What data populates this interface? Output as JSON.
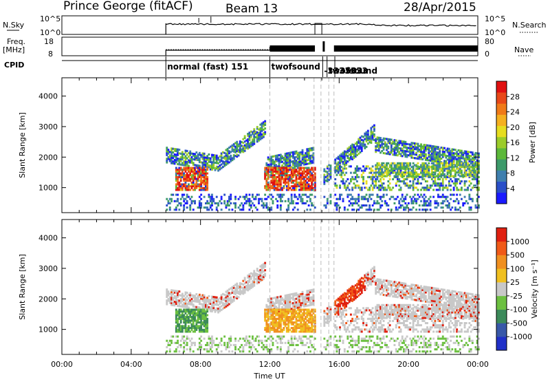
{
  "header": {
    "station": "Prince George (fitACF)",
    "beam": "Beam 13",
    "date": "28/Apr/2015"
  },
  "strip_labels": {
    "nsky": "N.Sky",
    "nsky_hi": "10^5",
    "nsky_lo": "10^0",
    "nsearch": "N.Search",
    "freq_line1": "Freq.",
    "freq_line2": "[MHz]",
    "freq_hi": "18",
    "freq_lo": "8",
    "nave": "Nave",
    "nave_hi": "80",
    "nave_lo": "0",
    "cpid": "CPID",
    "nsearch_hi": "10^5",
    "nsearch_lo": "10^0"
  },
  "cpid_modes": [
    {
      "text": "normal (fast) 151",
      "hour": 6.0
    },
    {
      "text": "twofsound",
      "hour": 12.0
    },
    {
      "text": "-3333333",
      "hour": 15.05
    },
    {
      "text": "twofsound",
      "hour": 15.3
    },
    {
      "text": "-3503",
      "hour": 15.75
    }
  ],
  "chart_data": [
    {
      "type": "heatmap",
      "title": "Power",
      "xlabel": "",
      "ylabel": "Slant Range [km]",
      "x_ticks": [
        "00:00",
        "04:00",
        "08:00",
        "12:00",
        "16:00",
        "20:00",
        "00:00"
      ],
      "xlim": [
        0,
        24
      ],
      "ylim": [
        180,
        4600
      ],
      "y_ticks": [
        "1000",
        "2000",
        "3000",
        "4000"
      ],
      "colorbar": {
        "label": "Power [dB]",
        "ticks": [
          "4",
          "8",
          "12",
          "16",
          "20",
          "24",
          "28"
        ],
        "range": [
          0,
          30
        ],
        "colors": [
          "#1a1aff",
          "#2a4fc8",
          "#3f7fae",
          "#3d9a6a",
          "#5cb83a",
          "#9bcc2a",
          "#e6dd20",
          "#f5b020",
          "#f07a18",
          "#e84818",
          "#e01010"
        ]
      },
      "mode_boundaries_hours": [
        12.0,
        14.55,
        14.95,
        15.4,
        15.7
      ]
    },
    {
      "type": "heatmap",
      "title": "Velocity",
      "xlabel": "Time UT",
      "ylabel": "Slant Range [km]",
      "x_ticks": [
        "00:00",
        "04:00",
        "08:00",
        "12:00",
        "16:00",
        "20:00",
        "00:00"
      ],
      "xlim": [
        0,
        24
      ],
      "ylim": [
        180,
        4600
      ],
      "y_ticks": [
        "1000",
        "2000",
        "3000",
        "4000"
      ],
      "colorbar": {
        "label": "Velocity [m s⁻¹]",
        "ticks": [
          "1000",
          "500",
          "100",
          "25",
          "-25",
          "-100",
          "-500",
          "-1000"
        ],
        "colors": [
          "#2030c8",
          "#3858a8",
          "#3c8a5a",
          "#6cc040",
          "#c8c8c8",
          "#f0c020",
          "#f09020",
          "#f05a18",
          "#e02010"
        ]
      },
      "mode_boundaries_hours": [
        12.0,
        14.55,
        14.95,
        15.4,
        15.7
      ]
    }
  ]
}
